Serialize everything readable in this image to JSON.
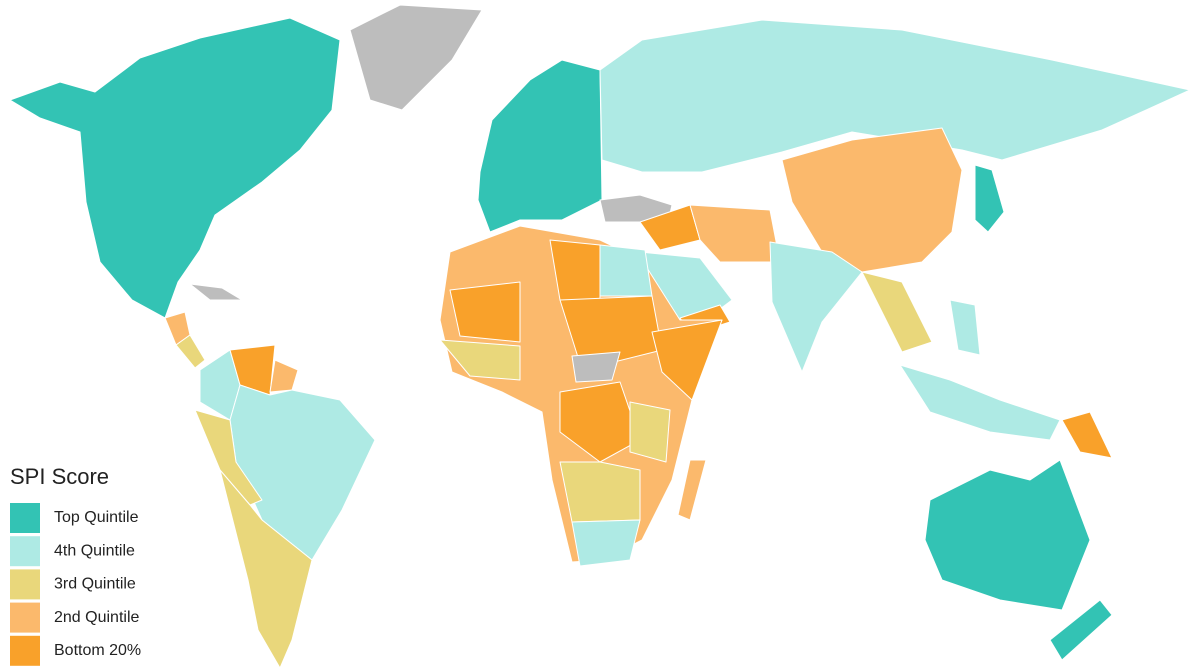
{
  "legend": {
    "title": "SPI Score",
    "items": [
      {
        "label": "Top Quintile",
        "color": "#33c3b4"
      },
      {
        "label": "4th Quintile",
        "color": "#aeeae4"
      },
      {
        "label": "3rd Quintile",
        "color": "#e9d77b"
      },
      {
        "label": "2nd Quintile",
        "color": "#fbb96c"
      },
      {
        "label": "Bottom 20%",
        "color": "#f9a12a"
      }
    ]
  }
}
